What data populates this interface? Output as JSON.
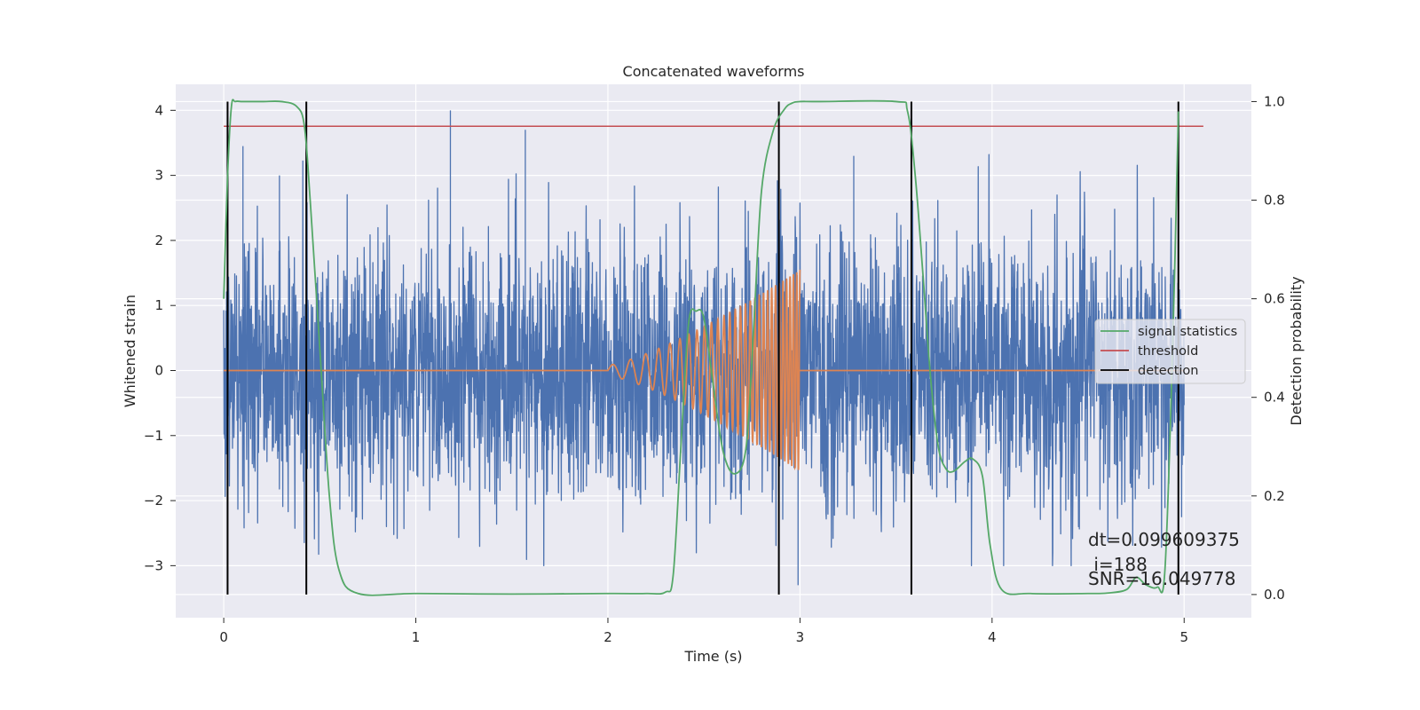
{
  "chart_data": {
    "type": "line",
    "title": "Concatenated waveforms",
    "xlabel": "Time (s)",
    "ylabel": "Whitened strain",
    "y2label": "Detection probability",
    "xlim": [
      -0.25,
      5.35
    ],
    "ylim": [
      -3.8,
      4.4
    ],
    "y2lim": [
      -0.047,
      1.035
    ],
    "xticks": [
      0,
      1,
      2,
      3,
      4,
      5
    ],
    "xtick_labels": [
      "0",
      "1",
      "2",
      "3",
      "4",
      "5"
    ],
    "yticks": [
      -3,
      -2,
      -1,
      0,
      1,
      2,
      3,
      4
    ],
    "ytick_labels": [
      "−3",
      "−2",
      "−1",
      "0",
      "1",
      "2",
      "3",
      "4"
    ],
    "y2ticks": [
      0.0,
      0.2,
      0.4,
      0.6,
      0.8,
      1.0
    ],
    "y2tick_labels": [
      "0.0",
      "0.2",
      "0.4",
      "0.6",
      "0.8",
      "1.0"
    ],
    "grid": true,
    "legend_position": "center-right",
    "legend": [
      "signal statistics",
      "threshold",
      "detection"
    ],
    "colors": {
      "strain": "#4c72b0",
      "template": "#dd8452",
      "signal_statistics": "#55a868",
      "threshold": "#c44e52",
      "detection": "#000000",
      "plot_background": "#eaeaf2",
      "grid": "#ffffff"
    },
    "series": [
      {
        "kind": "noise",
        "axis": "left",
        "x_range": [
          0,
          5.0
        ],
        "amplitude_sd": 1.0,
        "peak_max": 4.0,
        "peak_min": -3.3
      },
      {
        "kind": "chirp",
        "axis": "left",
        "x_range": [
          2.0,
          3.0
        ],
        "start_amplitude": 0.08,
        "end_amplitude": 1.55,
        "start_frequency_hz": 10,
        "end_frequency_hz": 60
      },
      {
        "name": "signal statistics",
        "axis": "right",
        "x": [
          0.0,
          0.02,
          0.04,
          0.06,
          0.1,
          0.2,
          0.3,
          0.38,
          0.42,
          0.45,
          0.5,
          0.55,
          0.6,
          0.7,
          1.0,
          1.5,
          2.0,
          2.2,
          2.3,
          2.34,
          2.38,
          2.42,
          2.46,
          2.5,
          2.55,
          2.6,
          2.66,
          2.72,
          2.76,
          2.8,
          2.86,
          2.92,
          2.96,
          3.0,
          3.1,
          3.5,
          3.56,
          3.6,
          3.64,
          3.68,
          3.72,
          3.76,
          3.8,
          3.86,
          3.9,
          3.95,
          3.99,
          4.05,
          4.2,
          4.5,
          4.6,
          4.7,
          4.75,
          4.8,
          4.86,
          4.9,
          4.94,
          4.97
        ],
        "values": [
          0.6,
          0.85,
          0.99,
          1.0,
          1.0,
          1.0,
          1.0,
          0.99,
          0.95,
          0.8,
          0.5,
          0.2,
          0.05,
          0.002,
          0.002,
          0.001,
          0.002,
          0.002,
          0.005,
          0.04,
          0.3,
          0.55,
          0.575,
          0.56,
          0.42,
          0.29,
          0.245,
          0.3,
          0.55,
          0.82,
          0.94,
          0.985,
          0.997,
          1.0,
          1.0,
          1.0,
          0.98,
          0.85,
          0.65,
          0.44,
          0.3,
          0.255,
          0.25,
          0.27,
          0.275,
          0.24,
          0.1,
          0.01,
          0.002,
          0.002,
          0.003,
          0.01,
          0.035,
          0.02,
          0.015,
          0.05,
          0.5,
          0.98
        ]
      },
      {
        "name": "threshold",
        "axis": "right",
        "x": [
          0.0,
          5.1
        ],
        "values": [
          0.95,
          0.95
        ]
      }
    ],
    "detections": [
      0.02,
      0.43,
      2.89,
      3.58,
      4.97
    ],
    "annotations": [
      "dt=0.099609375",
      " i=188",
      "SNR=16.049778"
    ]
  }
}
